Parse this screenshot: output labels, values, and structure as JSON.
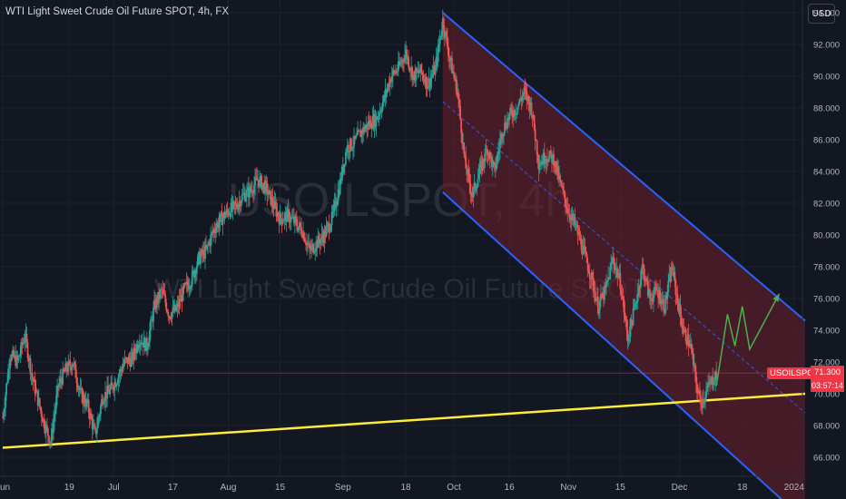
{
  "header": {
    "title": "WTI Light Sweet Crude Oil Future SPOT, 4h, FX",
    "currency_button": "USD"
  },
  "watermark": {
    "symbol": "USOILSPOT, 4h",
    "description": "WTI Light Sweet Crude Oil Future SPOT"
  },
  "price_badge": {
    "symbol": "USOILSPOT",
    "price": "71.300",
    "countdown": "03:57:14"
  },
  "colors": {
    "background": "#131722",
    "grid": "#1e222d",
    "axis_text": "#b2b5be",
    "candle_up": "#26a69a",
    "candle_down": "#ef5350",
    "channel_line": "#2962ff",
    "channel_fill": "#6d1f2a",
    "support_line": "#ffeb3b",
    "projection": "#4caf50",
    "price_line": "#f23645"
  },
  "chart_data": {
    "type": "candlestick",
    "y_axis": {
      "range": [
        64.8,
        94.8
      ],
      "ticks": [
        "66.000",
        "68.000",
        "70.000",
        "72.000",
        "74.000",
        "76.000",
        "78.000",
        "80.000",
        "82.000",
        "84.000",
        "86.000",
        "88.000",
        "90.000",
        "92.000",
        "94.000"
      ]
    },
    "x_axis": {
      "range": [
        "2023-06-01",
        "2024-01-04"
      ],
      "ticks": [
        {
          "label": "Jun",
          "date": "2023-06-01"
        },
        {
          "label": "19",
          "date": "2023-06-19"
        },
        {
          "label": "Jul",
          "date": "2023-07-01"
        },
        {
          "label": "17",
          "date": "2023-07-17"
        },
        {
          "label": "Aug",
          "date": "2023-08-01"
        },
        {
          "label": "15",
          "date": "2023-08-15"
        },
        {
          "label": "Sep",
          "date": "2023-09-01"
        },
        {
          "label": "18",
          "date": "2023-09-18"
        },
        {
          "label": "Oct",
          "date": "2023-10-01"
        },
        {
          "label": "16",
          "date": "2023-10-16"
        },
        {
          "label": "Nov",
          "date": "2023-11-01"
        },
        {
          "label": "15",
          "date": "2023-11-15"
        },
        {
          "label": "Dec",
          "date": "2023-12-01"
        },
        {
          "label": "18",
          "date": "2023-12-18"
        },
        {
          "label": "2024",
          "date": "2024-01-01"
        }
      ]
    },
    "price_path": [
      [
        "2023-06-01",
        68.5
      ],
      [
        "2023-06-03",
        72.5
      ],
      [
        "2023-06-05",
        72.0
      ],
      [
        "2023-06-07",
        73.7
      ],
      [
        "2023-06-09",
        71.0
      ],
      [
        "2023-06-12",
        68.3
      ],
      [
        "2023-06-14",
        67.0
      ],
      [
        "2023-06-16",
        70.5
      ],
      [
        "2023-06-18",
        71.5
      ],
      [
        "2023-06-20",
        72.0
      ],
      [
        "2023-06-22",
        70.0
      ],
      [
        "2023-06-24",
        69.2
      ],
      [
        "2023-06-26",
        67.4
      ],
      [
        "2023-06-28",
        69.8
      ],
      [
        "2023-06-30",
        70.2
      ],
      [
        "2023-07-02",
        71.0
      ],
      [
        "2023-07-04",
        72.0
      ],
      [
        "2023-07-06",
        72.2
      ],
      [
        "2023-07-08",
        73.5
      ],
      [
        "2023-07-10",
        73.0
      ],
      [
        "2023-07-12",
        75.5
      ],
      [
        "2023-07-14",
        76.5
      ],
      [
        "2023-07-16",
        75.0
      ],
      [
        "2023-07-18",
        75.3
      ],
      [
        "2023-07-20",
        76.5
      ],
      [
        "2023-07-22",
        77.2
      ],
      [
        "2023-07-24",
        78.5
      ],
      [
        "2023-07-26",
        79.0
      ],
      [
        "2023-07-28",
        80.3
      ],
      [
        "2023-07-30",
        81.0
      ],
      [
        "2023-08-01",
        81.5
      ],
      [
        "2023-08-03",
        81.8
      ],
      [
        "2023-08-05",
        82.5
      ],
      [
        "2023-08-07",
        82.8
      ],
      [
        "2023-08-09",
        83.5
      ],
      [
        "2023-08-11",
        83.0
      ],
      [
        "2023-08-13",
        82.0
      ],
      [
        "2023-08-15",
        81.0
      ],
      [
        "2023-08-17",
        81.2
      ],
      [
        "2023-08-19",
        80.8
      ],
      [
        "2023-08-21",
        80.3
      ],
      [
        "2023-08-23",
        79.0
      ],
      [
        "2023-08-25",
        79.5
      ],
      [
        "2023-08-27",
        80.0
      ],
      [
        "2023-08-29",
        81.0
      ],
      [
        "2023-08-31",
        83.0
      ],
      [
        "2023-09-02",
        85.5
      ],
      [
        "2023-09-04",
        85.8
      ],
      [
        "2023-09-06",
        86.5
      ],
      [
        "2023-09-08",
        87.0
      ],
      [
        "2023-09-10",
        87.3
      ],
      [
        "2023-09-12",
        88.5
      ],
      [
        "2023-09-14",
        90.0
      ],
      [
        "2023-09-16",
        90.5
      ],
      [
        "2023-09-18",
        91.5
      ],
      [
        "2023-09-20",
        90.0
      ],
      [
        "2023-09-22",
        90.3
      ],
      [
        "2023-09-24",
        89.5
      ],
      [
        "2023-09-26",
        90.5
      ],
      [
        "2023-09-28",
        93.5
      ],
      [
        "2023-09-30",
        91.0
      ],
      [
        "2023-10-02",
        89.0
      ],
      [
        "2023-10-04",
        84.5
      ],
      [
        "2023-10-06",
        82.5
      ],
      [
        "2023-10-08",
        84.0
      ],
      [
        "2023-10-10",
        85.5
      ],
      [
        "2023-10-12",
        84.0
      ],
      [
        "2023-10-14",
        86.5
      ],
      [
        "2023-10-16",
        87.5
      ],
      [
        "2023-10-18",
        88.0
      ],
      [
        "2023-10-20",
        89.0
      ],
      [
        "2023-10-22",
        88.0
      ],
      [
        "2023-10-24",
        84.5
      ],
      [
        "2023-10-26",
        85.0
      ],
      [
        "2023-10-28",
        84.8
      ],
      [
        "2023-10-30",
        83.0
      ],
      [
        "2023-11-01",
        81.5
      ],
      [
        "2023-11-03",
        80.5
      ],
      [
        "2023-11-05",
        79.0
      ],
      [
        "2023-11-07",
        77.5
      ],
      [
        "2023-11-09",
        75.5
      ],
      [
        "2023-11-11",
        76.5
      ],
      [
        "2023-11-13",
        78.5
      ],
      [
        "2023-11-15",
        77.0
      ],
      [
        "2023-11-17",
        73.5
      ],
      [
        "2023-11-19",
        75.5
      ],
      [
        "2023-11-21",
        78.0
      ],
      [
        "2023-11-23",
        76.0
      ],
      [
        "2023-11-25",
        76.5
      ],
      [
        "2023-11-27",
        75.5
      ],
      [
        "2023-11-29",
        78.0
      ],
      [
        "2023-11-30",
        76.5
      ],
      [
        "2023-12-02",
        74.0
      ],
      [
        "2023-12-04",
        73.0
      ],
      [
        "2023-12-06",
        70.0
      ],
      [
        "2023-12-07",
        69.5
      ],
      [
        "2023-12-09",
        70.5
      ],
      [
        "2023-12-11",
        71.3
      ]
    ],
    "channel": {
      "upper": [
        [
          "2023-09-28",
          94.0
        ],
        [
          "2024-01-04",
          74.6
        ]
      ],
      "lower": [
        [
          "2023-09-28",
          82.7
        ],
        [
          "2024-01-04",
          62.0
        ]
      ],
      "mid": [
        [
          "2023-09-28",
          88.4
        ],
        [
          "2024-01-04",
          68.8
        ]
      ]
    },
    "support_line": [
      [
        "2023-06-01",
        66.6
      ],
      [
        "2024-01-04",
        70.0
      ]
    ],
    "current_price_line": 71.3,
    "projection": [
      [
        "2023-12-11",
        70.5
      ],
      [
        "2023-12-14",
        75.0
      ],
      [
        "2023-12-16",
        73.0
      ],
      [
        "2023-12-18",
        75.5
      ],
      [
        "2023-12-20",
        72.8
      ],
      [
        "2023-12-28",
        76.3
      ]
    ]
  }
}
